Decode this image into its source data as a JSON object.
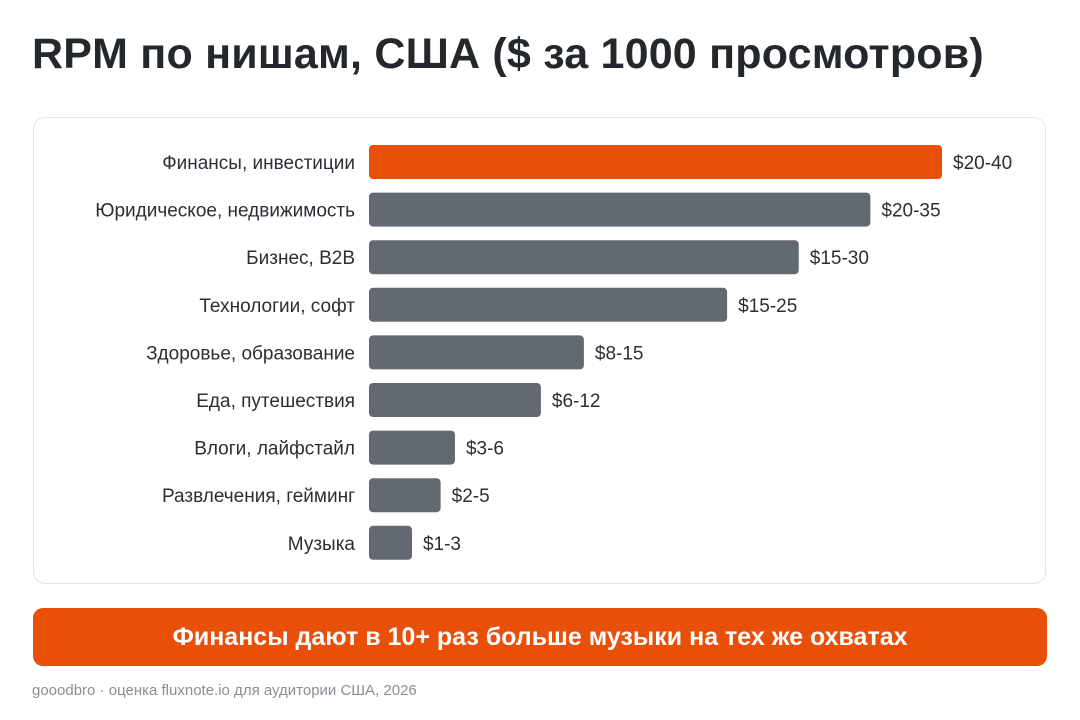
{
  "title": "RPM по нишам, США ($ за 1000 просмотров)",
  "banner": "Финансы дают в 10+ раз больше музыки на тех же охватах",
  "footer": "gooodbro · оценка fluxnote.io для аудитории США, 2026",
  "colors": {
    "highlight": "#e8500a",
    "bar": "#636970",
    "text": "#2b2f35"
  },
  "chart_data": {
    "type": "bar",
    "orientation": "horizontal",
    "categories": [
      "Финансы, инвестиции",
      "Юридическое, недвижимость",
      "Бизнес, B2B",
      "Технологии, софт",
      "Здоровье, образование",
      "Еда, путешествия",
      "Влоги, лайфстайл",
      "Развлечения, гейминг",
      "Музыка"
    ],
    "value_labels": [
      "$20-40",
      "$20-35",
      "$15-30",
      "$15-25",
      "$8-15",
      "$6-12",
      "$3-6",
      "$2-5",
      "$1-3"
    ],
    "values": [
      40,
      35,
      30,
      25,
      15,
      12,
      6,
      5,
      3
    ],
    "highlight_index": 0,
    "xlim": [
      0,
      40
    ],
    "grid": false,
    "title": "RPM по нишам, США ($ за 1000 просмотров)"
  }
}
